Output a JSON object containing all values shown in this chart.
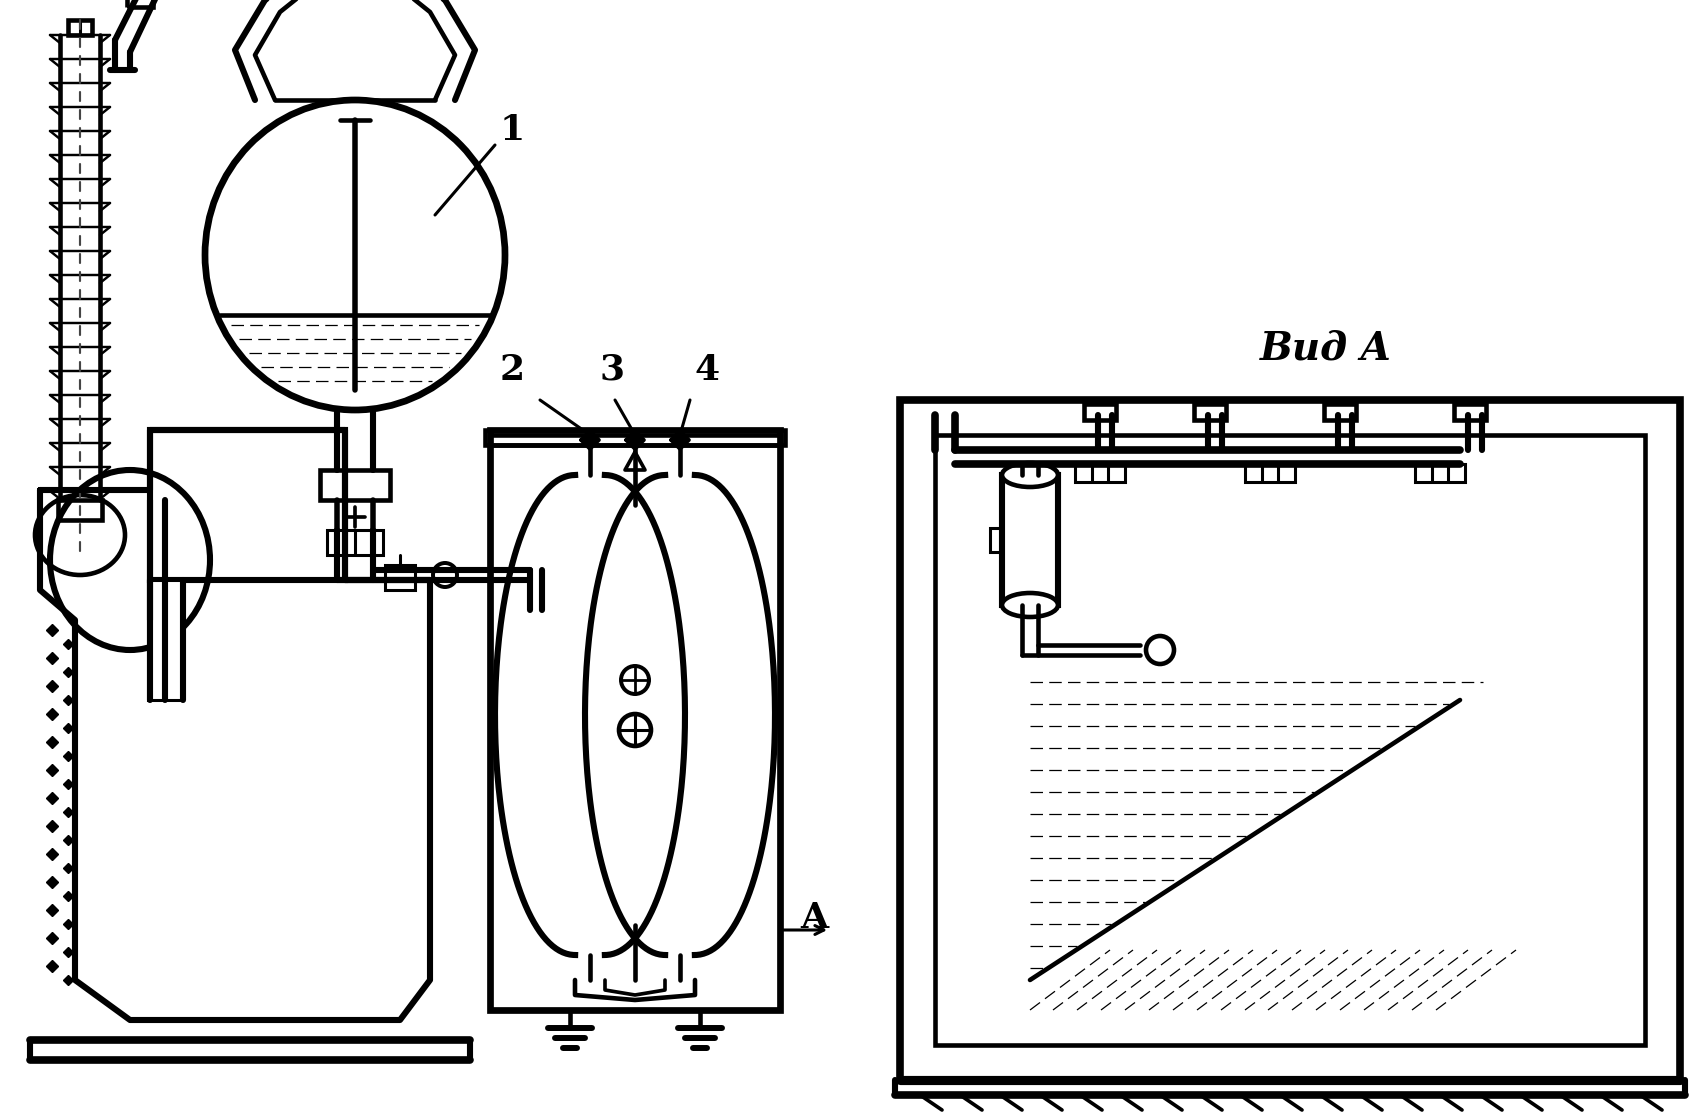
{
  "background_color": "#ffffff",
  "line_color": "#000000",
  "lw": 2.2,
  "label_1": "1",
  "label_2": "2",
  "label_3": "3",
  "label_4": "4",
  "label_A": "A",
  "label_vid": "Вид A"
}
